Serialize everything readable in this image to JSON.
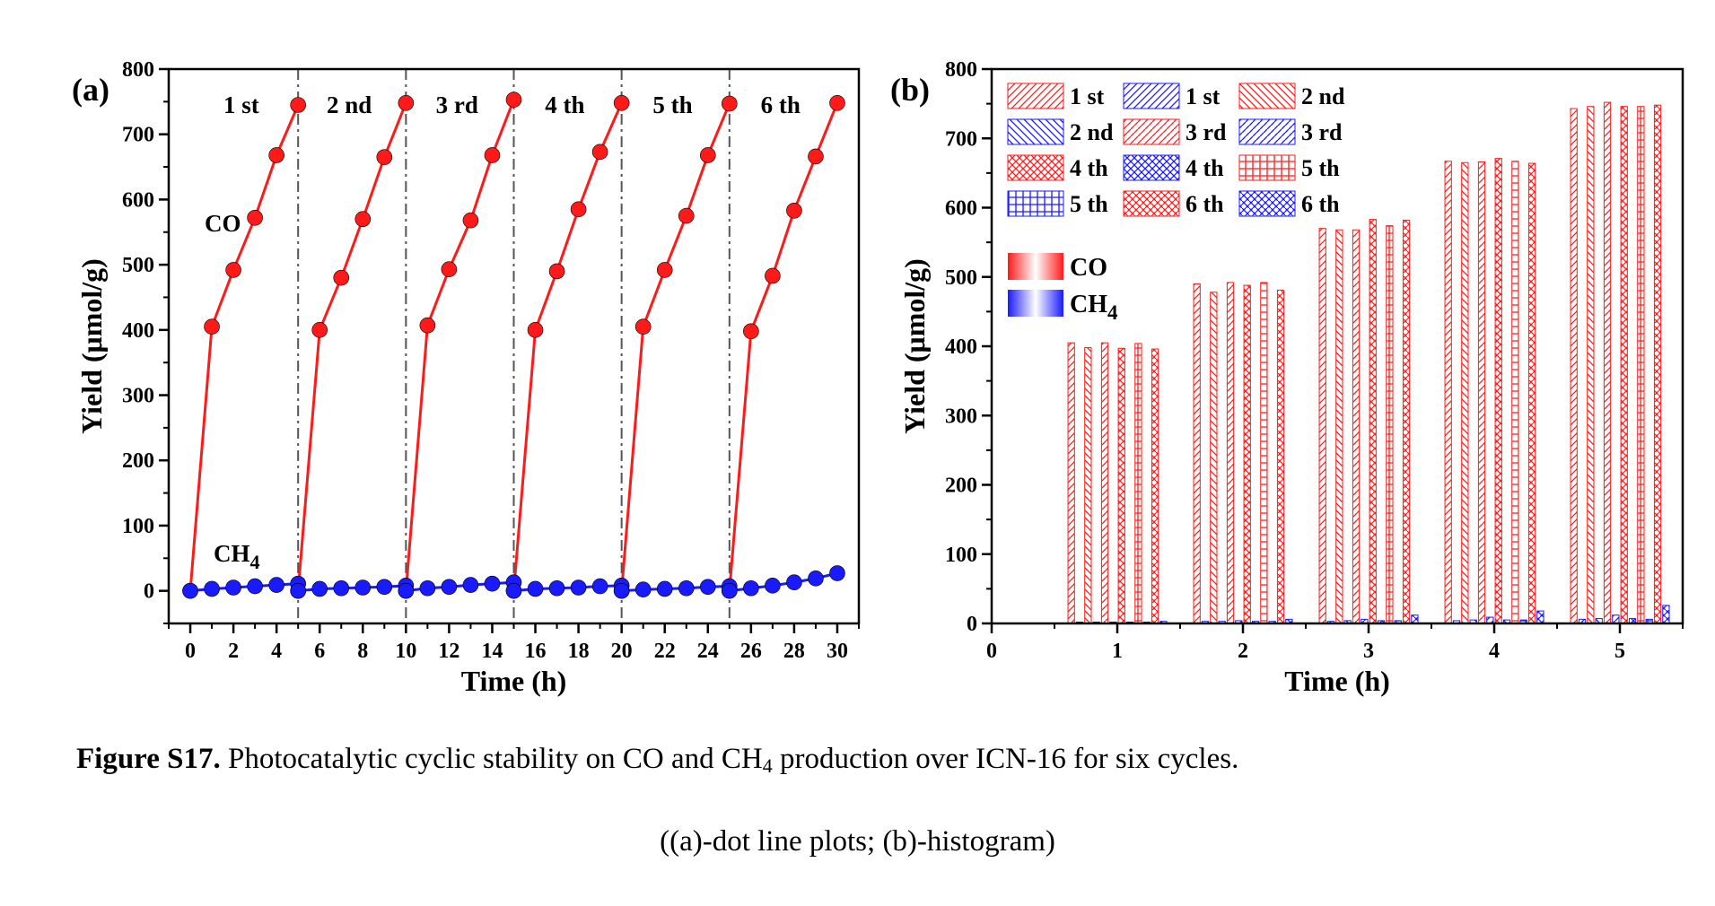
{
  "caption": {
    "label": "Figure S17.",
    "text_before": " Photocatalytic cyclic stability on CO and CH",
    "sub": "4",
    "text_after": " production over ICN-16 for six cycles.",
    "line2": "((a)-dot line plots; (b)-histogram)"
  },
  "colors": {
    "co": "#ff1a1a",
    "ch4": "#1a1aff",
    "axis": "#000000",
    "divider": "#555555"
  },
  "chart_data": [
    {
      "panel": "(a)",
      "type": "line",
      "xlabel": "Time (h)",
      "ylabel": "Yield (μmol/g)",
      "xlim": [
        -1,
        31
      ],
      "ylim": [
        -50,
        800
      ],
      "xticks": [
        0,
        2,
        4,
        6,
        8,
        10,
        12,
        14,
        16,
        18,
        20,
        22,
        24,
        26,
        28,
        30
      ],
      "yticks": [
        0,
        100,
        200,
        300,
        400,
        500,
        600,
        700,
        800
      ],
      "cycle_labels": [
        "1 st",
        "2 nd",
        "3 rd",
        "4 th",
        "5 th",
        "6 th"
      ],
      "cycle_boundaries": [
        5,
        10,
        15,
        20,
        25
      ],
      "series": [
        {
          "name": "CO",
          "cycles": [
            {
              "x": [
                0,
                1,
                2,
                3,
                4,
                5
              ],
              "y": [
                0,
                405,
                492,
                572,
                668,
                745
              ]
            },
            {
              "x": [
                5,
                6,
                7,
                8,
                9,
                10
              ],
              "y": [
                0,
                400,
                480,
                570,
                665,
                748
              ]
            },
            {
              "x": [
                10,
                11,
                12,
                13,
                14,
                15
              ],
              "y": [
                0,
                407,
                493,
                568,
                668,
                753
              ]
            },
            {
              "x": [
                15,
                16,
                17,
                18,
                19,
                20
              ],
              "y": [
                0,
                400,
                490,
                585,
                673,
                748
              ]
            },
            {
              "x": [
                20,
                21,
                22,
                23,
                24,
                25
              ],
              "y": [
                0,
                405,
                492,
                575,
                668,
                747
              ]
            },
            {
              "x": [
                25,
                26,
                27,
                28,
                29,
                30
              ],
              "y": [
                0,
                398,
                483,
                583,
                666,
                748
              ]
            }
          ]
        },
        {
          "name": "CH4",
          "cycles": [
            {
              "x": [
                0,
                1,
                2,
                3,
                4,
                5
              ],
              "y": [
                0,
                3,
                5,
                7,
                9,
                11
              ]
            },
            {
              "x": [
                5,
                6,
                7,
                8,
                9,
                10
              ],
              "y": [
                0,
                3,
                4,
                5,
                6,
                8
              ]
            },
            {
              "x": [
                10,
                11,
                12,
                13,
                14,
                15
              ],
              "y": [
                0,
                4,
                6,
                9,
                11,
                13
              ]
            },
            {
              "x": [
                15,
                16,
                17,
                18,
                19,
                20
              ],
              "y": [
                0,
                3,
                4,
                5,
                7,
                8
              ]
            },
            {
              "x": [
                20,
                21,
                22,
                23,
                24,
                25
              ],
              "y": [
                0,
                2,
                3,
                4,
                6,
                7
              ]
            },
            {
              "x": [
                25,
                26,
                27,
                28,
                29,
                30
              ],
              "y": [
                0,
                4,
                8,
                13,
                19,
                27
              ]
            }
          ]
        }
      ],
      "annotations": {
        "co": "CO",
        "ch4_base": "CH",
        "ch4_sub": "4"
      }
    },
    {
      "panel": "(b)",
      "type": "bar",
      "xlabel": "Time (h)",
      "ylabel": "Yield (μmol/g)",
      "xlim": [
        0,
        5.5
      ],
      "ylim": [
        0,
        800
      ],
      "xticks": [
        0,
        1,
        2,
        3,
        4,
        5
      ],
      "yticks": [
        0,
        100,
        200,
        300,
        400,
        500,
        600,
        700,
        800
      ],
      "categories": [
        1,
        2,
        3,
        4,
        5
      ],
      "series": [
        {
          "name": "1 st",
          "gas": "CO",
          "values": [
            405,
            490,
            570,
            667,
            743
          ]
        },
        {
          "name": "1 st",
          "gas": "CH4",
          "values": [
            2,
            3,
            3,
            4,
            6
          ]
        },
        {
          "name": "2 nd",
          "gas": "CO",
          "values": [
            398,
            478,
            568,
            665,
            746
          ]
        },
        {
          "name": "2 nd",
          "gas": "CH4",
          "values": [
            2,
            3,
            4,
            5,
            7
          ]
        },
        {
          "name": "3 rd",
          "gas": "CO",
          "values": [
            405,
            492,
            568,
            666,
            752
          ]
        },
        {
          "name": "3 rd",
          "gas": "CH4",
          "values": [
            2,
            4,
            6,
            9,
            12
          ]
        },
        {
          "name": "4 th",
          "gas": "CO",
          "values": [
            397,
            488,
            583,
            671,
            746
          ]
        },
        {
          "name": "4 th",
          "gas": "CH4",
          "values": [
            2,
            3,
            4,
            5,
            7
          ]
        },
        {
          "name": "5 th",
          "gas": "CO",
          "values": [
            404,
            492,
            574,
            667,
            746
          ]
        },
        {
          "name": "5 th",
          "gas": "CH4",
          "values": [
            2,
            3,
            4,
            5,
            6
          ]
        },
        {
          "name": "6 th",
          "gas": "CO",
          "values": [
            396,
            481,
            582,
            664,
            748
          ]
        },
        {
          "name": "6 th",
          "gas": "CH4",
          "values": [
            3,
            6,
            12,
            18,
            26
          ]
        }
      ],
      "legend_extra": [
        {
          "gas": "CO",
          "label_base": "CO",
          "label_sub": ""
        },
        {
          "gas": "CH4",
          "label_base": "CH",
          "label_sub": "4"
        }
      ]
    }
  ]
}
